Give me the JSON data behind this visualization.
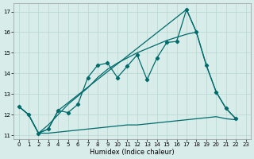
{
  "bg_color": "#d8ecea",
  "line_color": "#006b6b",
  "grid_color": "#b8d4d0",
  "xlabel": "Humidex (Indice chaleur)",
  "xlim": [
    -0.5,
    23.5
  ],
  "ylim": [
    10.8,
    17.4
  ],
  "yticks": [
    11,
    12,
    13,
    14,
    15,
    16,
    17
  ],
  "xticks": [
    0,
    1,
    2,
    3,
    4,
    5,
    6,
    7,
    8,
    9,
    10,
    11,
    12,
    13,
    14,
    15,
    16,
    17,
    18,
    19,
    20,
    21,
    22,
    23
  ],
  "line1_x": [
    0,
    1,
    2,
    3,
    4,
    5,
    6,
    7,
    8,
    9,
    10,
    11,
    12,
    13,
    14,
    15,
    16,
    17,
    18,
    19,
    20,
    21,
    22
  ],
  "line1_y": [
    12.4,
    12.0,
    11.1,
    11.3,
    12.2,
    12.1,
    12.5,
    13.8,
    14.4,
    14.5,
    13.8,
    14.35,
    14.9,
    13.7,
    14.75,
    15.5,
    15.55,
    17.1,
    16.0,
    14.4,
    13.1,
    12.3,
    11.8
  ],
  "line2_x": [
    0,
    1,
    2,
    3,
    4,
    5,
    6,
    7,
    8,
    9,
    10,
    11,
    12,
    13,
    14,
    15,
    16,
    17,
    18,
    19,
    20,
    21,
    22
  ],
  "line2_y": [
    12.4,
    12.0,
    11.1,
    11.1,
    11.15,
    11.2,
    11.25,
    11.3,
    11.35,
    11.4,
    11.45,
    11.5,
    11.5,
    11.55,
    11.6,
    11.65,
    11.7,
    11.75,
    11.8,
    11.85,
    11.9,
    11.8,
    11.75
  ],
  "line3_x": [
    0,
    1,
    2,
    3,
    4,
    5,
    6,
    7,
    8,
    9,
    10,
    11,
    12,
    13,
    14,
    15,
    16,
    17,
    18
  ],
  "line3_y": [
    12.4,
    12.0,
    11.1,
    11.5,
    12.0,
    12.5,
    12.9,
    13.3,
    13.8,
    14.2,
    14.5,
    14.75,
    15.0,
    15.2,
    15.4,
    15.6,
    15.75,
    15.9,
    16.0
  ],
  "line4_x": [
    2,
    3,
    4,
    17,
    18,
    19,
    20,
    21,
    22
  ],
  "line4_y": [
    11.1,
    11.3,
    12.2,
    17.1,
    16.0,
    14.4,
    13.1,
    12.3,
    11.8
  ]
}
